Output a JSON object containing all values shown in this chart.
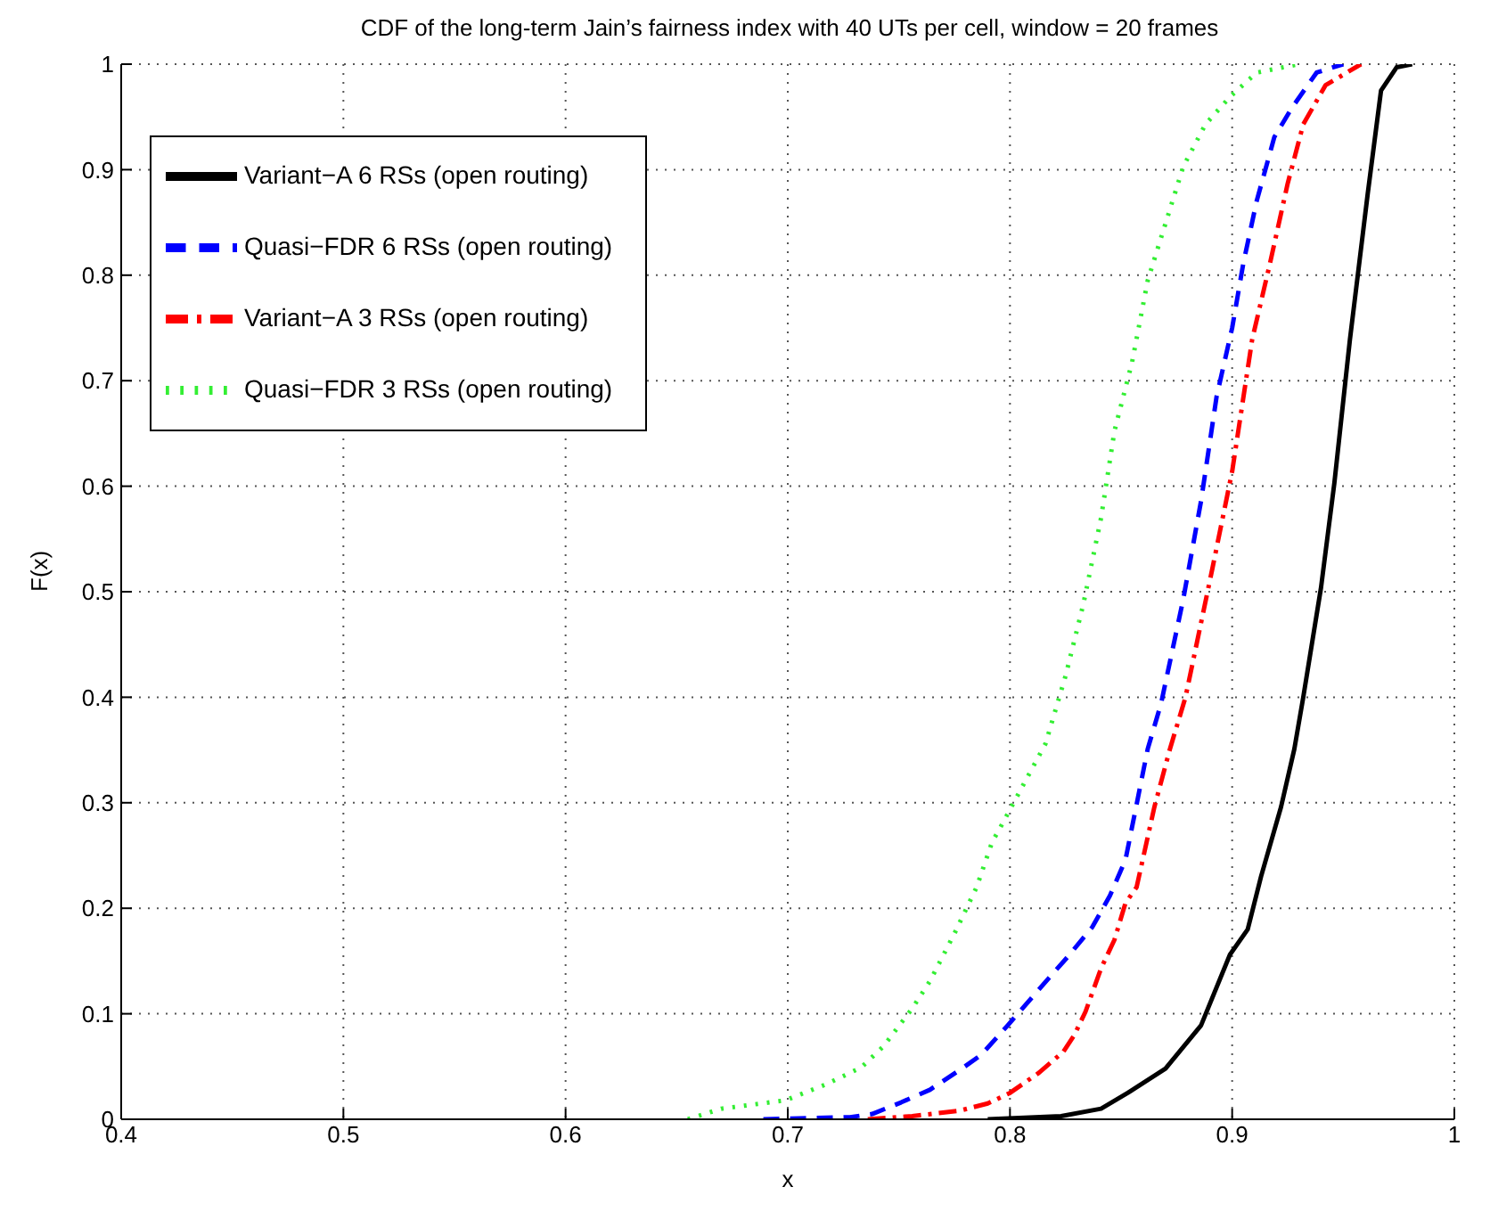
{
  "chart_data": {
    "type": "line",
    "title": "CDF of the long-term Jain’s fairness index with 40 UTs per cell, window = 20 frames",
    "xlabel": "x",
    "ylabel": "F(x)",
    "xlim": [
      0.4,
      1
    ],
    "ylim": [
      0,
      1
    ],
    "xticks": [
      0.4,
      0.5,
      0.6,
      0.7,
      0.8,
      0.9,
      1
    ],
    "yticks": [
      0,
      0.1,
      0.2,
      0.3,
      0.4,
      0.5,
      0.6,
      0.7,
      0.8,
      0.9,
      1
    ],
    "grid": true,
    "legend": "top left",
    "marker": "none",
    "series": [
      {
        "name": "Variant−A 6 RSs (open routing)",
        "color": "#000000",
        "line_style": "solid",
        "x": [
          0.79,
          0.823,
          0.841,
          0.853,
          0.87,
          0.886,
          0.899,
          0.907,
          0.913,
          0.922,
          0.928,
          0.932,
          0.94,
          0.946,
          0.953,
          0.961,
          0.967,
          0.974,
          0.981
        ],
        "values": [
          0,
          0.003,
          0.01,
          0.025,
          0.048,
          0.089,
          0.156,
          0.18,
          0.23,
          0.296,
          0.351,
          0.4,
          0.504,
          0.603,
          0.739,
          0.877,
          0.975,
          0.997,
          1
        ]
      },
      {
        "name": "Quasi−FDR 6 RSs (open routing)",
        "color": "#0000ff",
        "line_style": "dashed",
        "x": [
          0.689,
          0.728,
          0.738,
          0.751,
          0.764,
          0.779,
          0.787,
          0.799,
          0.813,
          0.826,
          0.837,
          0.845,
          0.852,
          0.862,
          0.868,
          0.878,
          0.886,
          0.893,
          0.9,
          0.905,
          0.911,
          0.919,
          0.927,
          0.938,
          0.95
        ],
        "values": [
          0,
          0.002,
          0.005,
          0.016,
          0.028,
          0.049,
          0.061,
          0.089,
          0.123,
          0.154,
          0.182,
          0.212,
          0.246,
          0.351,
          0.394,
          0.493,
          0.586,
          0.685,
          0.75,
          0.811,
          0.87,
          0.931,
          0.959,
          0.992,
          1
        ]
      },
      {
        "name": "Variant−A 3 RSs (open routing)",
        "color": "#ff0000",
        "line_style": "dashdot",
        "x": [
          0.736,
          0.756,
          0.777,
          0.79,
          0.8,
          0.813,
          0.824,
          0.829,
          0.834,
          0.841,
          0.847,
          0.852,
          0.857,
          0.865,
          0.872,
          0.879,
          0.891,
          0.9,
          0.909,
          0.917,
          0.925,
          0.932,
          0.942,
          0.958
        ],
        "values": [
          0,
          0.003,
          0.008,
          0.015,
          0.025,
          0.044,
          0.064,
          0.08,
          0.102,
          0.143,
          0.17,
          0.205,
          0.22,
          0.296,
          0.351,
          0.4,
          0.521,
          0.614,
          0.739,
          0.811,
          0.887,
          0.943,
          0.98,
          1
        ]
      },
      {
        "name": "Quasi−FDR 3 RSs (open routing)",
        "color": "#33ee33",
        "line_style": "dotted",
        "x": [
          0.655,
          0.67,
          0.699,
          0.717,
          0.733,
          0.743,
          0.756,
          0.764,
          0.775,
          0.785,
          0.792,
          0.795,
          0.816,
          0.825,
          0.833,
          0.841,
          0.847,
          0.855,
          0.862,
          0.87,
          0.878,
          0.888,
          0.899,
          0.911,
          0.93
        ],
        "values": [
          0,
          0.01,
          0.018,
          0.033,
          0.049,
          0.069,
          0.105,
          0.131,
          0.176,
          0.22,
          0.263,
          0.274,
          0.356,
          0.42,
          0.488,
          0.57,
          0.652,
          0.718,
          0.795,
          0.849,
          0.903,
          0.943,
          0.969,
          0.992,
          1
        ]
      }
    ]
  }
}
